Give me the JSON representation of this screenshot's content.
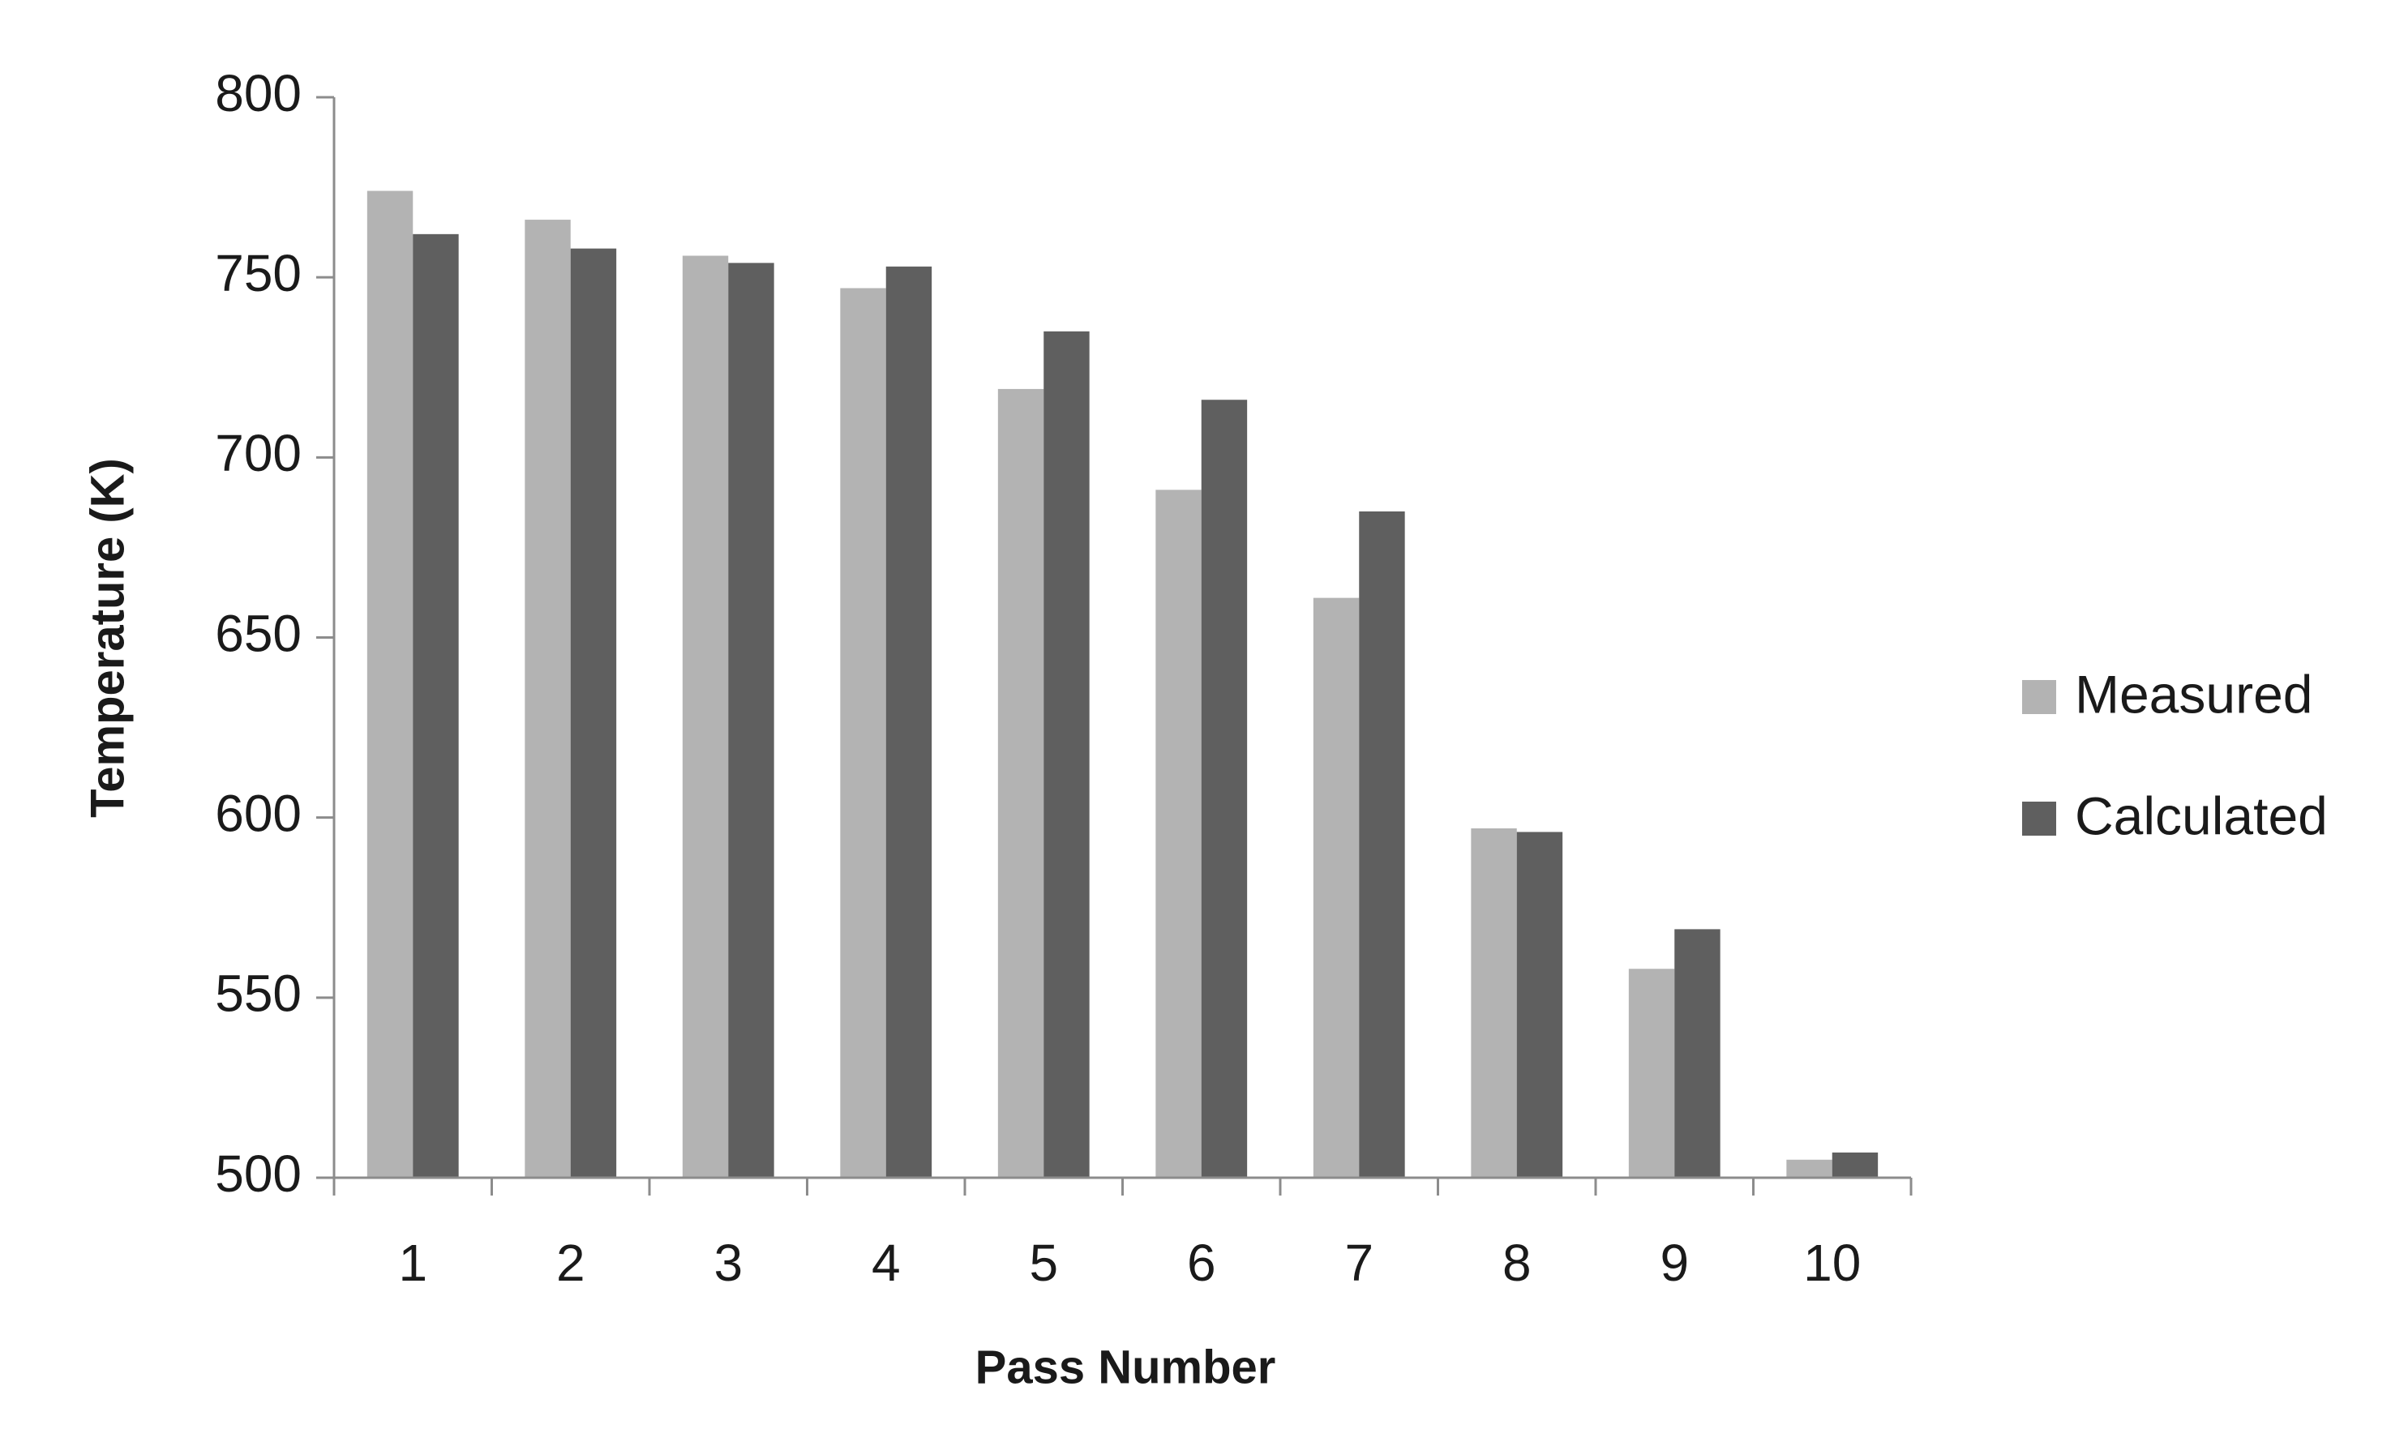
{
  "chart_data": {
    "type": "bar",
    "x_label": "Pass Number",
    "y_label": "Temperature (K)",
    "categories": [
      "1",
      "2",
      "3",
      "4",
      "5",
      "6",
      "7",
      "8",
      "9",
      "10"
    ],
    "series": [
      {
        "name": "Measured",
        "color": "#b3b3b3",
        "values": [
          774,
          766,
          756,
          747,
          719,
          691,
          661,
          597,
          558,
          505
        ]
      },
      {
        "name": "Calculated",
        "color": "#5f5f5f",
        "values": [
          762,
          758,
          754,
          753,
          735,
          716,
          685,
          596,
          569,
          507
        ]
      }
    ],
    "ylim": [
      500,
      800
    ],
    "yticks": [
      500,
      550,
      600,
      650,
      700,
      750,
      800
    ],
    "grid": false,
    "legend": "right"
  }
}
